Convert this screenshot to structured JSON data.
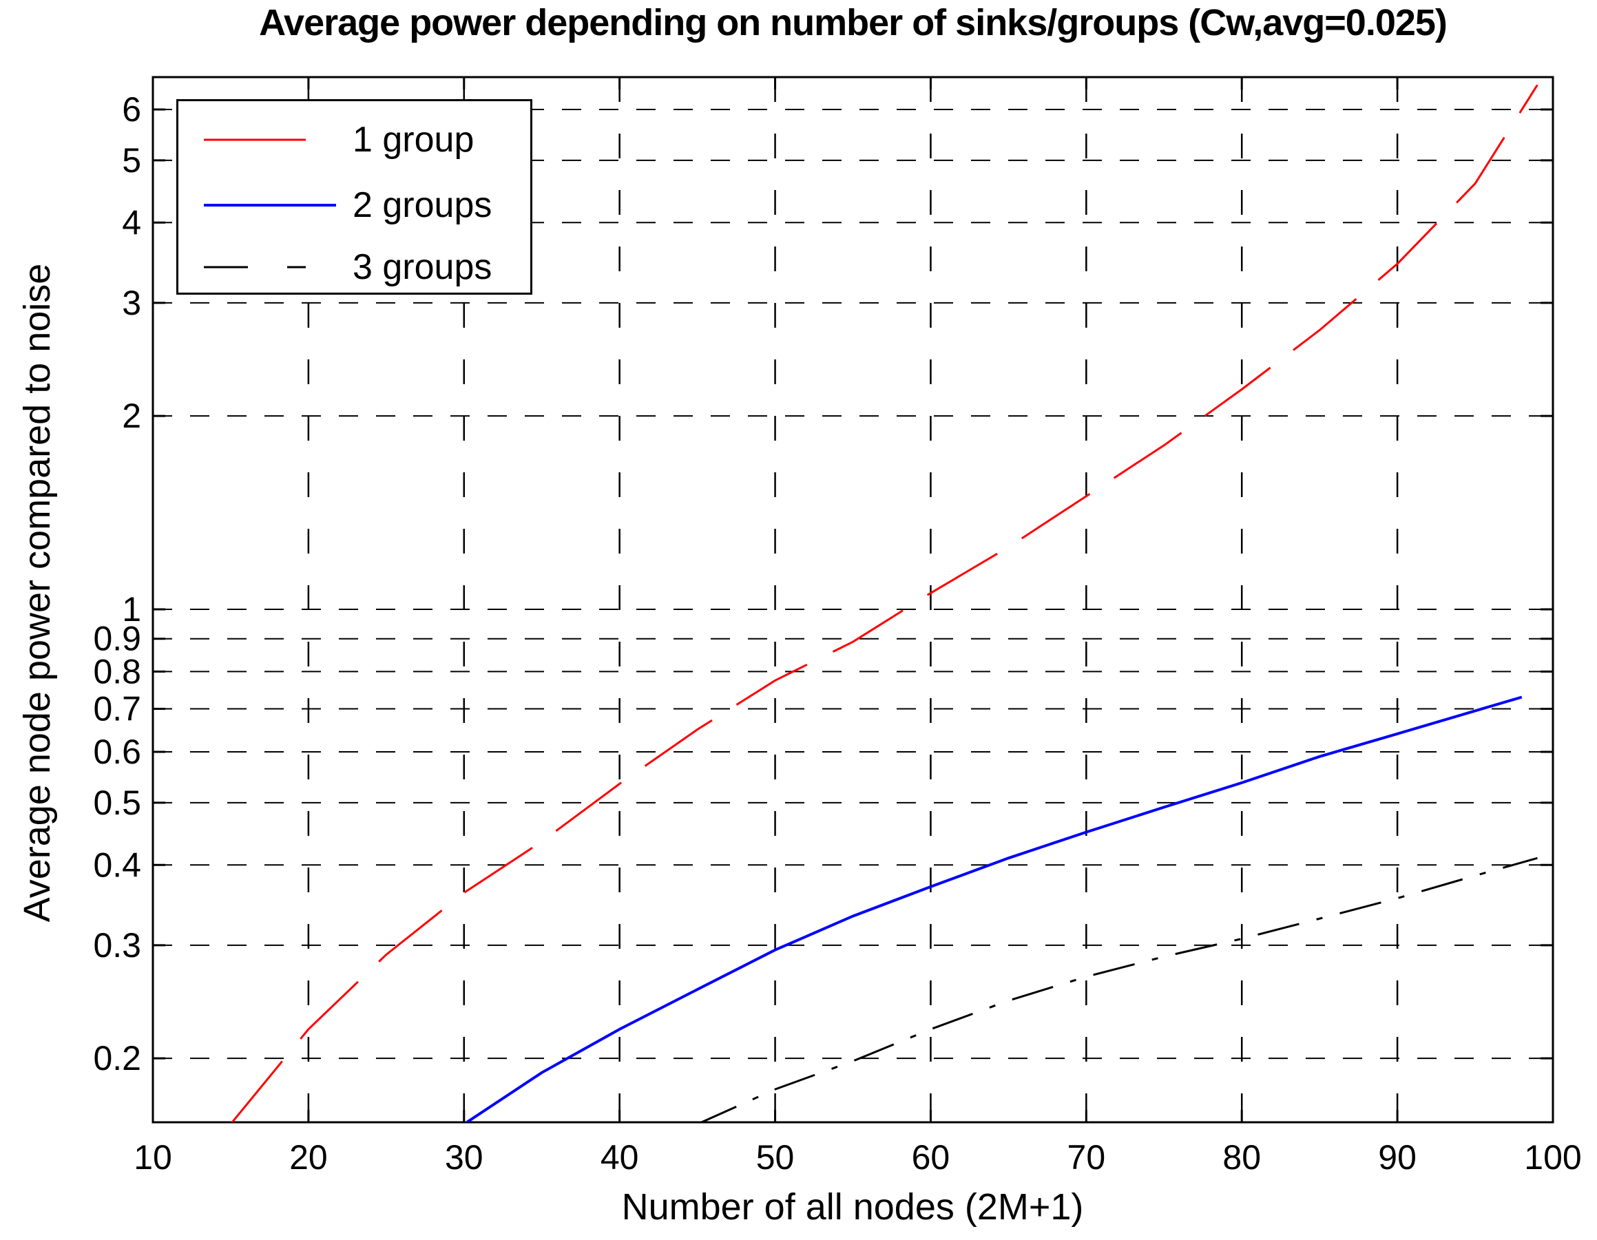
{
  "chart_data": {
    "type": "line",
    "title": "Average power depending on number of sinks/groups (Cw,avg=0.025)",
    "xlabel": "Number of all nodes (2M+1)",
    "ylabel": "Average node power compared to noise",
    "x_scale": "linear",
    "y_scale": "log",
    "xlim": [
      10,
      100
    ],
    "ylim": [
      0.158,
      6.74
    ],
    "grid": "dashed",
    "grid_color": "#000000",
    "background": "#ffffff",
    "legend_position": "top-left",
    "x_ticks": [
      {
        "v": 10,
        "label": "10"
      },
      {
        "v": 20,
        "label": "20"
      },
      {
        "v": 30,
        "label": "30"
      },
      {
        "v": 40,
        "label": "40"
      },
      {
        "v": 50,
        "label": "50"
      },
      {
        "v": 60,
        "label": "60"
      },
      {
        "v": 70,
        "label": "70"
      },
      {
        "v": 80,
        "label": "80"
      },
      {
        "v": 90,
        "label": "90"
      },
      {
        "v": 100,
        "label": "100"
      }
    ],
    "y_ticks": [
      {
        "v": 0.2,
        "label": "0.2"
      },
      {
        "v": 0.3,
        "label": "0.3"
      },
      {
        "v": 0.4,
        "label": "0.4"
      },
      {
        "v": 0.5,
        "label": "0.5"
      },
      {
        "v": 0.6,
        "label": "0.6"
      },
      {
        "v": 0.7,
        "label": "0.7"
      },
      {
        "v": 0.8,
        "label": "0.8"
      },
      {
        "v": 0.9,
        "label": "0.9"
      },
      {
        "v": 1,
        "label": "1"
      },
      {
        "v": 2,
        "label": "2"
      },
      {
        "v": 3,
        "label": "3"
      },
      {
        "v": 4,
        "label": "4"
      },
      {
        "v": 5,
        "label": "5"
      },
      {
        "v": 6,
        "label": "6"
      }
    ],
    "series": [
      {
        "name": "1 group",
        "color": "#ff0000",
        "style": "dashed",
        "points": [
          [
            15,
            0.158
          ],
          [
            20,
            0.222
          ],
          [
            25,
            0.29
          ],
          [
            30,
            0.362
          ],
          [
            35,
            0.435
          ],
          [
            40,
            0.535
          ],
          [
            45,
            0.65
          ],
          [
            50,
            0.775
          ],
          [
            55,
            0.89
          ],
          [
            60,
            1.06
          ],
          [
            65,
            1.25
          ],
          [
            70,
            1.5
          ],
          [
            75,
            1.8
          ],
          [
            80,
            2.2
          ],
          [
            85,
            2.72
          ],
          [
            90,
            3.45
          ],
          [
            95,
            4.6
          ],
          [
            99,
            6.55
          ]
        ]
      },
      {
        "name": "2 groups",
        "color": "#0000ff",
        "style": "solid",
        "points": [
          [
            30,
            0.158
          ],
          [
            35,
            0.19
          ],
          [
            40,
            0.222
          ],
          [
            45,
            0.256
          ],
          [
            50,
            0.295
          ],
          [
            55,
            0.333
          ],
          [
            60,
            0.37
          ],
          [
            65,
            0.41
          ],
          [
            70,
            0.45
          ],
          [
            75,
            0.492
          ],
          [
            80,
            0.537
          ],
          [
            85,
            0.59
          ],
          [
            90,
            0.64
          ],
          [
            95,
            0.695
          ],
          [
            98,
            0.73
          ]
        ]
      },
      {
        "name": "3 groups",
        "color": "#000000",
        "style": "dash-dot",
        "points": [
          [
            45,
            0.158
          ],
          [
            50,
            0.179
          ],
          [
            55,
            0.198
          ],
          [
            60,
            0.222
          ],
          [
            65,
            0.246
          ],
          [
            70,
            0.268
          ],
          [
            75,
            0.288
          ],
          [
            80,
            0.307
          ],
          [
            85,
            0.33
          ],
          [
            90,
            0.355
          ],
          [
            95,
            0.385
          ],
          [
            99,
            0.41
          ]
        ]
      }
    ]
  }
}
